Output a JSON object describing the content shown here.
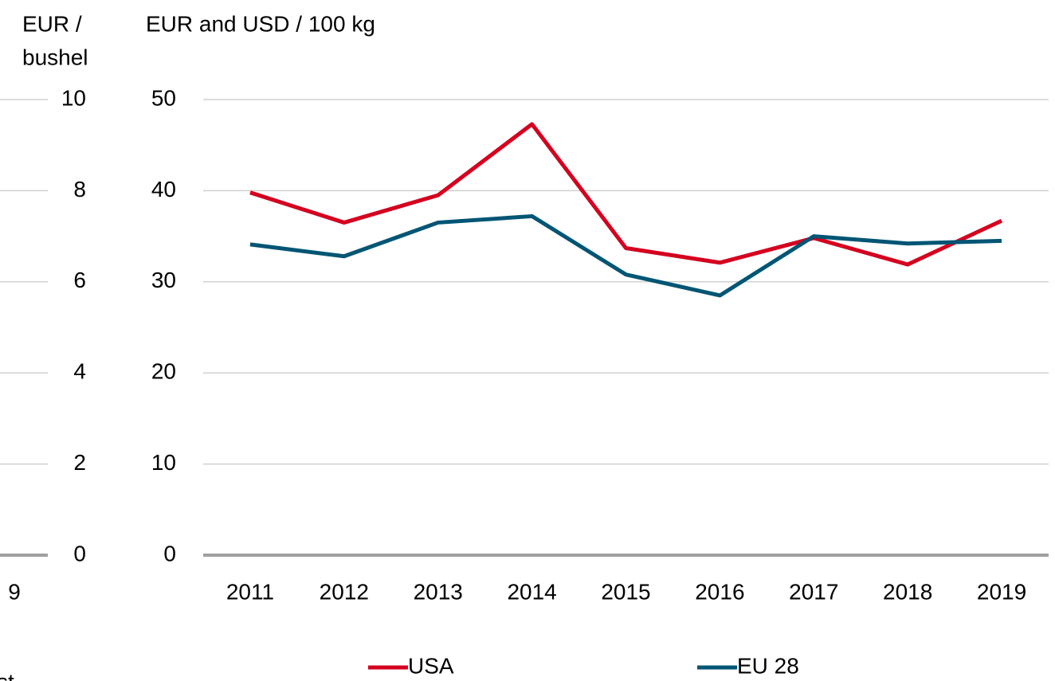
{
  "chart_data": [
    {
      "type": "line",
      "y_label": [
        "EUR /",
        "bushel"
      ],
      "categories": [
        "9"
      ],
      "legend_fragment": "st",
      "ylim": [
        0,
        10
      ],
      "yticks": [
        0,
        2,
        4,
        6,
        8,
        10
      ],
      "grid": true
    },
    {
      "type": "line",
      "y_label": "EUR and USD / 100 kg",
      "categories": [
        "2011",
        "2012",
        "2013",
        "2014",
        "2015",
        "2016",
        "2017",
        "2018",
        "2019"
      ],
      "series": [
        {
          "name": "USA",
          "color": "#d5001f",
          "values": [
            39.8,
            36.5,
            39.5,
            47.3,
            33.7,
            32.1,
            34.8,
            31.9,
            36.7
          ]
        },
        {
          "name": "EU 28",
          "color": "#005574",
          "values": [
            34.1,
            32.8,
            36.5,
            37.2,
            30.8,
            28.5,
            35.0,
            34.2,
            34.5
          ]
        }
      ],
      "ylim": [
        0,
        50
      ],
      "yticks": [
        0,
        10,
        20,
        30,
        40,
        50
      ],
      "grid": true,
      "legend": "bottom"
    }
  ]
}
